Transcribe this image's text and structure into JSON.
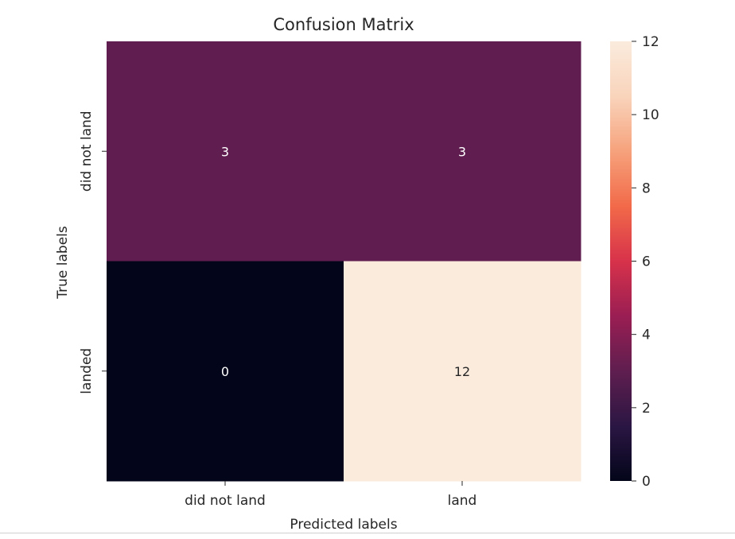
{
  "chart_data": {
    "type": "heatmap",
    "title": "Confusion Matrix",
    "xlabel": "Predicted labels",
    "ylabel": "True labels",
    "x_categories": [
      "did not land",
      "land"
    ],
    "y_categories": [
      "did not land",
      "landed"
    ],
    "values": [
      [
        3,
        3
      ],
      [
        0,
        12
      ]
    ],
    "colorbar": {
      "min": 0,
      "max": 12,
      "ticks": [
        0,
        2,
        4,
        6,
        8,
        10,
        12
      ],
      "tick_labels": [
        "0",
        "2",
        "4",
        "6",
        "8",
        "10",
        "12"
      ],
      "colormap": "rocket",
      "color_stops": [
        "#03051a",
        "#2b1643",
        "#5f1e4f",
        "#9a1e53",
        "#d7324a",
        "#f26a49",
        "#f6a27c",
        "#f9d4bb",
        "#faebdd"
      ]
    },
    "annotation_colors": {
      "dark_cell_text": "#ffffff",
      "light_cell_text": "#262626"
    }
  }
}
